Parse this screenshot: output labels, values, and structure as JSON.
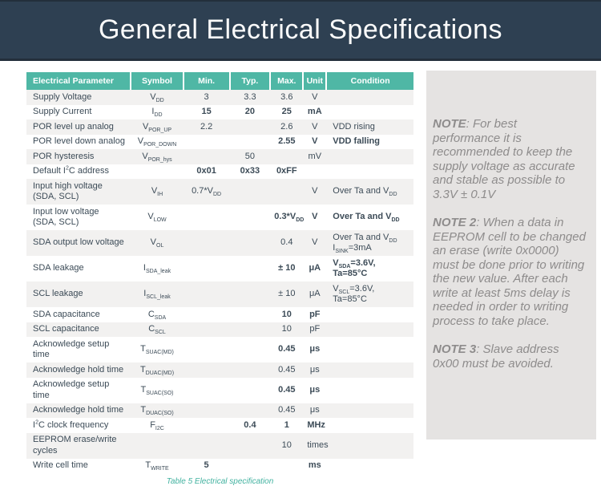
{
  "header": {
    "title": "General Electrical Specifications"
  },
  "table": {
    "columns": [
      "Electrical Parameter",
      "Symbol",
      "Min.",
      "Typ.",
      "Max.",
      "Unit",
      "Condition"
    ],
    "rows": [
      {
        "param": "Supply Voltage",
        "symbol": "V~DD~",
        "min": "3",
        "typ": "3.3",
        "max": "3.6",
        "unit": "V",
        "cond": ""
      },
      {
        "param": "Supply Current",
        "symbol": "I~DD~",
        "min": "15",
        "typ": "20",
        "max": "25",
        "unit": "mA",
        "cond": ""
      },
      {
        "param": "POR level up analog",
        "symbol": "V~POR_UP~",
        "min": "2.2",
        "typ": "",
        "max": "2.6",
        "unit": "V",
        "cond": "VDD rising"
      },
      {
        "param": "POR level down analog",
        "symbol": "V~POR_DOWN~",
        "min": "",
        "typ": "",
        "max": "2.55",
        "unit": "V",
        "cond": "VDD falling"
      },
      {
        "param": "POR hysteresis",
        "symbol": "V~POR_hys~",
        "min": "",
        "typ": "50",
        "max": "",
        "unit": "mV",
        "cond": ""
      },
      {
        "param": "Default I^2^C address",
        "symbol": "",
        "min": "0x01",
        "typ": "0x33",
        "max": "0xFF",
        "unit": "",
        "cond": ""
      },
      {
        "param": "Input high voltage\n(SDA, SCL)",
        "symbol": "V~IH~",
        "min": "0.7*V~DD~",
        "typ": "",
        "max": "",
        "unit": "V",
        "cond": "Over Ta and V~DD~"
      },
      {
        "param": "Input low voltage\n(SDA, SCL)",
        "symbol": "V~LOW~",
        "min": "",
        "typ": "",
        "max": "0.3*V~DD~",
        "unit": "V",
        "cond": "Over Ta and V~DD~"
      },
      {
        "param": "SDA output low voltage",
        "symbol": "V~OL~",
        "min": "",
        "typ": "",
        "max": "0.4",
        "unit": "V",
        "cond": "Over Ta and V~DD~\nI~SINK~=3mA"
      },
      {
        "param": "SDA leakage",
        "symbol": "I~SDA_leak~",
        "min": "",
        "typ": "",
        "max": "± 10",
        "unit": "μA",
        "cond": "V~SDA~=3.6V, Ta=85°C"
      },
      {
        "param": "SCL leakage",
        "symbol": "I~SCL_leak~",
        "min": "",
        "typ": "",
        "max": "± 10",
        "unit": "μA",
        "cond": "V~SCL~=3.6V, Ta=85°C"
      },
      {
        "param": "SDA capacitance",
        "symbol": "C~SDA~",
        "min": "",
        "typ": "",
        "max": "10",
        "unit": "pF",
        "cond": ""
      },
      {
        "param": "SCL capacitance",
        "symbol": "C~SCL~",
        "min": "",
        "typ": "",
        "max": "10",
        "unit": "pF",
        "cond": ""
      },
      {
        "param": "Acknowledge setup time",
        "symbol": "T~SUAC(MD)~",
        "min": "",
        "typ": "",
        "max": "0.45",
        "unit": "μs",
        "cond": ""
      },
      {
        "param": "Acknowledge hold time",
        "symbol": "T~DUAC(MD)~",
        "min": "",
        "typ": "",
        "max": "0.45",
        "unit": "μs",
        "cond": ""
      },
      {
        "param": "Acknowledge setup time",
        "symbol": "T~SUAC(SO)~",
        "min": "",
        "typ": "",
        "max": "0.45",
        "unit": "μs",
        "cond": ""
      },
      {
        "param": "Acknowledge hold time",
        "symbol": "T~DUAC(SO)~",
        "min": "",
        "typ": "",
        "max": "0.45",
        "unit": "μs",
        "cond": ""
      },
      {
        "param": "I^2^C clock frequency",
        "symbol": "F~I2C~",
        "min": "",
        "typ": "0.4",
        "max": "1",
        "unit": "MHz",
        "cond": ""
      },
      {
        "param": "EEPROM erase/write cycles",
        "symbol": "",
        "min": "",
        "typ": "",
        "max": "10",
        "unit": "times",
        "cond": ""
      },
      {
        "param": "Write cell time",
        "symbol": "T~WRITE~",
        "min": "5",
        "typ": "",
        "max": "",
        "unit": "ms",
        "cond": ""
      }
    ],
    "caption": "Table 5 Electrical specification"
  },
  "notes": [
    {
      "label": "NOTE",
      "text": ": For best performance it is recommended to keep the supply voltage as accurate and stable as possible to 3.3V ± 0.1V"
    },
    {
      "label": "NOTE 2",
      "text": ": When a data in EEPROM cell to be changed an erase (write 0x0000) must be done prior to writing the new value. After each write at least 5ms delay is needed in order to writing process to take place."
    },
    {
      "label": "NOTE 3",
      "text": ": Slave address 0x00 must be avoided."
    }
  ],
  "colors": {
    "banner": "#2e4052",
    "banner-edge": "#232f3b",
    "teal": "#4fb7a5",
    "row_alt": "#f2f1f0",
    "panel": "#e5e3e2",
    "caption": "#42b2a0",
    "text": "#3c4b57",
    "note_text": "#8e8c8c"
  }
}
